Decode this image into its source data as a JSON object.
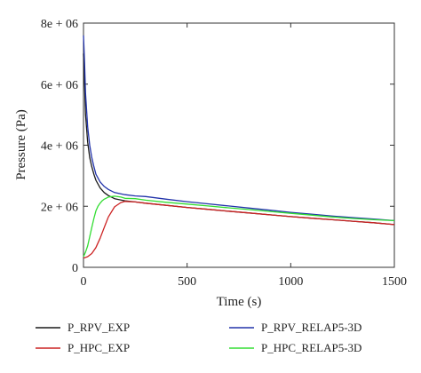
{
  "chart_data": {
    "type": "line",
    "xlabel": "Time (s)",
    "ylabel": "Pressure (Pa)",
    "xlim": [
      0,
      1500
    ],
    "ylim": [
      0,
      8000000
    ],
    "x_ticks": [
      0,
      500,
      1000,
      1500
    ],
    "x_tick_labels": [
      "0",
      "500",
      "1000",
      "1500"
    ],
    "y_ticks": [
      0,
      2000000,
      4000000,
      6000000,
      8000000
    ],
    "y_tick_labels": [
      "0",
      "2e + 06",
      "4e + 06",
      "6e + 06",
      "8e + 06"
    ],
    "grid": false,
    "legend_position": "below",
    "series": [
      {
        "name": "P_RPV_EXP",
        "color": "#1a1a1a",
        "x": [
          0,
          5,
          10,
          20,
          30,
          40,
          50,
          60,
          80,
          100,
          120,
          150,
          200,
          250,
          300,
          400,
          500,
          600,
          700,
          800,
          900,
          1000,
          1100,
          1200,
          1300,
          1400,
          1500
        ],
        "y": [
          7000000,
          6000000,
          5000000,
          4100000,
          3600000,
          3300000,
          3050000,
          2850000,
          2600000,
          2450000,
          2350000,
          2250000,
          2180000,
          2140000,
          2100000,
          2030000,
          1960000,
          1900000,
          1840000,
          1780000,
          1720000,
          1660000,
          1610000,
          1560000,
          1510000,
          1460000,
          1400000
        ]
      },
      {
        "name": "P_HPC_EXP",
        "color": "#cc2222",
        "x": [
          0,
          20,
          40,
          60,
          80,
          100,
          120,
          150,
          180,
          200,
          250,
          300,
          400,
          500,
          600,
          700,
          800,
          900,
          1000,
          1100,
          1200,
          1300,
          1400,
          1500
        ],
        "y": [
          300000,
          350000,
          450000,
          650000,
          950000,
          1300000,
          1650000,
          1980000,
          2120000,
          2160000,
          2140000,
          2100000,
          2030000,
          1960000,
          1900000,
          1840000,
          1780000,
          1720000,
          1660000,
          1610000,
          1560000,
          1510000,
          1460000,
          1400000
        ]
      },
      {
        "name": "P_RPV_RELAP5-3D",
        "color": "#2233aa",
        "x": [
          0,
          5,
          10,
          20,
          30,
          40,
          50,
          60,
          80,
          100,
          120,
          150,
          200,
          250,
          300,
          400,
          500,
          600,
          700,
          800,
          900,
          1000,
          1100,
          1200,
          1300,
          1400,
          1500
        ],
        "y": [
          7600000,
          6700000,
          5700000,
          4600000,
          4000000,
          3600000,
          3300000,
          3050000,
          2800000,
          2650000,
          2550000,
          2450000,
          2380000,
          2340000,
          2320000,
          2230000,
          2150000,
          2080000,
          2010000,
          1940000,
          1870000,
          1800000,
          1740000,
          1680000,
          1630000,
          1580000,
          1530000
        ]
      },
      {
        "name": "P_HPC_RELAP5-3D",
        "color": "#33dd33",
        "x": [
          0,
          10,
          20,
          30,
          40,
          50,
          60,
          70,
          80,
          90,
          100,
          120,
          150,
          180,
          200,
          250,
          300,
          400,
          500,
          600,
          700,
          800,
          900,
          1000,
          1100,
          1200,
          1300,
          1400,
          1500
        ],
        "y": [
          350000,
          500000,
          700000,
          1000000,
          1300000,
          1600000,
          1850000,
          2000000,
          2100000,
          2180000,
          2230000,
          2300000,
          2330000,
          2300000,
          2260000,
          2250000,
          2200000,
          2130000,
          2070000,
          2010000,
          1950000,
          1890000,
          1830000,
          1770000,
          1710000,
          1650000,
          1600000,
          1560000,
          1530000
        ]
      }
    ],
    "legend": [
      {
        "label": "P_RPV_EXP",
        "color": "#1a1a1a"
      },
      {
        "label": "P_HPC_EXP",
        "color": "#cc2222"
      },
      {
        "label": "P_RPV_RELAP5-3D",
        "color": "#2233aa"
      },
      {
        "label": "P_HPC_RELAP5-3D",
        "color": "#33dd33"
      }
    ]
  }
}
